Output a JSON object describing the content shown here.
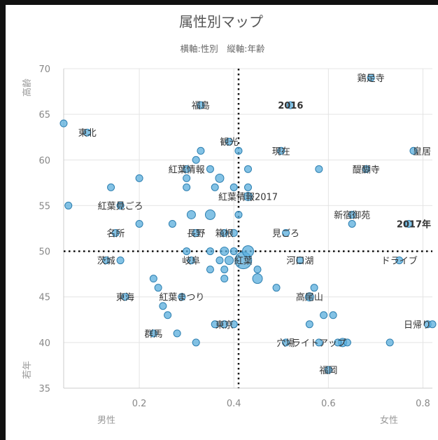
{
  "chart_data": {
    "type": "scatter",
    "title": "属性別マップ",
    "subtitle": "横軸:性別　縦軸:年齢",
    "xlim": [
      0.04,
      0.82
    ],
    "ylim": [
      35,
      70
    ],
    "x_ticks": [
      "0.2",
      "0.4",
      "0.6",
      "0.8"
    ],
    "y_ticks": [
      "35",
      "40",
      "45",
      "50",
      "55",
      "60",
      "65",
      "70"
    ],
    "x_left_label": "男性",
    "x_right_label": "女性",
    "y_top_label": "高齢",
    "y_bottom_label": "若年",
    "reference_lines": {
      "x": 0.41,
      "y": 50
    },
    "colors": {
      "point_fill": "#5aaedc",
      "point_stroke": "#2d7fb0",
      "frame": "#111111"
    },
    "points": [
      {
        "x": 0.69,
        "y": 69,
        "r": 5,
        "label": "鶏足寺"
      },
      {
        "x": 0.33,
        "y": 66,
        "r": 5,
        "label": "福島"
      },
      {
        "x": 0.52,
        "y": 66,
        "r": 5,
        "label": "2016",
        "bold": true
      },
      {
        "x": 0.04,
        "y": 64,
        "r": 5
      },
      {
        "x": 0.09,
        "y": 63,
        "r": 5,
        "label": "東北"
      },
      {
        "x": 0.39,
        "y": 62,
        "r": 5,
        "label": "観光"
      },
      {
        "x": 0.33,
        "y": 61,
        "r": 5
      },
      {
        "x": 0.41,
        "y": 61,
        "r": 5
      },
      {
        "x": 0.5,
        "y": 61,
        "r": 5,
        "label": "現在"
      },
      {
        "x": 0.78,
        "y": 61,
        "r": 5,
        "label": "皇居"
      },
      {
        "x": 0.32,
        "y": 60,
        "r": 5
      },
      {
        "x": 0.3,
        "y": 59,
        "r": 5,
        "label": "紅葉情報"
      },
      {
        "x": 0.35,
        "y": 59,
        "r": 5
      },
      {
        "x": 0.43,
        "y": 59,
        "r": 5
      },
      {
        "x": 0.58,
        "y": 59,
        "r": 5
      },
      {
        "x": 0.68,
        "y": 59,
        "r": 5,
        "label": "醍醐寺"
      },
      {
        "x": 0.2,
        "y": 58,
        "r": 5
      },
      {
        "x": 0.3,
        "y": 58,
        "r": 5
      },
      {
        "x": 0.37,
        "y": 58,
        "r": 6
      },
      {
        "x": 0.14,
        "y": 57,
        "r": 5
      },
      {
        "x": 0.3,
        "y": 57,
        "r": 5
      },
      {
        "x": 0.36,
        "y": 57,
        "r": 5
      },
      {
        "x": 0.4,
        "y": 57,
        "r": 5
      },
      {
        "x": 0.43,
        "y": 57,
        "r": 5
      },
      {
        "x": 0.43,
        "y": 56,
        "r": 6,
        "label": "紅葉情報2017"
      },
      {
        "x": 0.05,
        "y": 55,
        "r": 5
      },
      {
        "x": 0.16,
        "y": 55,
        "r": 5,
        "label": "紅葉見ごろ"
      },
      {
        "x": 0.31,
        "y": 54,
        "r": 6
      },
      {
        "x": 0.35,
        "y": 54,
        "r": 7
      },
      {
        "x": 0.41,
        "y": 54,
        "r": 5
      },
      {
        "x": 0.65,
        "y": 54,
        "r": 5,
        "label": "新宿御苑"
      },
      {
        "x": 0.2,
        "y": 53,
        "r": 5
      },
      {
        "x": 0.27,
        "y": 53,
        "r": 5
      },
      {
        "x": 0.65,
        "y": 53,
        "r": 5
      },
      {
        "x": 0.77,
        "y": 53,
        "r": 5,
        "label": "2017年",
        "bold": true
      },
      {
        "x": 0.15,
        "y": 52,
        "r": 5,
        "label": "名所"
      },
      {
        "x": 0.32,
        "y": 52,
        "r": 5,
        "label": "長野"
      },
      {
        "x": 0.38,
        "y": 52,
        "r": 5,
        "label": "箱根"
      },
      {
        "x": 0.4,
        "y": 52,
        "r": 5
      },
      {
        "x": 0.51,
        "y": 52,
        "r": 5,
        "label": "見ごろ"
      },
      {
        "x": 0.3,
        "y": 50,
        "r": 5
      },
      {
        "x": 0.35,
        "y": 50,
        "r": 5
      },
      {
        "x": 0.38,
        "y": 50,
        "r": 6
      },
      {
        "x": 0.4,
        "y": 50,
        "r": 5
      },
      {
        "x": 0.43,
        "y": 50,
        "r": 8
      },
      {
        "x": 0.13,
        "y": 49,
        "r": 5,
        "label": "茨城"
      },
      {
        "x": 0.16,
        "y": 49,
        "r": 5
      },
      {
        "x": 0.31,
        "y": 49,
        "r": 5,
        "label": "岐阜"
      },
      {
        "x": 0.37,
        "y": 49,
        "r": 5
      },
      {
        "x": 0.39,
        "y": 49,
        "r": 6
      },
      {
        "x": 0.42,
        "y": 49,
        "r": 12,
        "label": "紅葉"
      },
      {
        "x": 0.54,
        "y": 49,
        "r": 5,
        "label": "河口湖"
      },
      {
        "x": 0.75,
        "y": 49,
        "r": 5,
        "label": "ドライブ"
      },
      {
        "x": 0.35,
        "y": 48,
        "r": 5
      },
      {
        "x": 0.38,
        "y": 48,
        "r": 5
      },
      {
        "x": 0.45,
        "y": 48,
        "r": 5
      },
      {
        "x": 0.23,
        "y": 47,
        "r": 5
      },
      {
        "x": 0.38,
        "y": 47,
        "r": 5
      },
      {
        "x": 0.45,
        "y": 47,
        "r": 7
      },
      {
        "x": 0.24,
        "y": 46,
        "r": 5
      },
      {
        "x": 0.49,
        "y": 46,
        "r": 5
      },
      {
        "x": 0.57,
        "y": 46,
        "r": 5
      },
      {
        "x": 0.17,
        "y": 45,
        "r": 5,
        "label": "東海"
      },
      {
        "x": 0.29,
        "y": 45,
        "r": 5,
        "label": "紅葉まつり"
      },
      {
        "x": 0.56,
        "y": 45,
        "r": 6,
        "label": "高尾山"
      },
      {
        "x": 0.25,
        "y": 44,
        "r": 5
      },
      {
        "x": 0.26,
        "y": 43,
        "r": 5
      },
      {
        "x": 0.59,
        "y": 43,
        "r": 5
      },
      {
        "x": 0.61,
        "y": 43,
        "r": 5
      },
      {
        "x": 0.36,
        "y": 42,
        "r": 5
      },
      {
        "x": 0.38,
        "y": 42,
        "r": 5,
        "label": "東京"
      },
      {
        "x": 0.4,
        "y": 42,
        "r": 5
      },
      {
        "x": 0.56,
        "y": 42,
        "r": 5
      },
      {
        "x": 0.81,
        "y": 42,
        "r": 5,
        "label": "日帰り"
      },
      {
        "x": 0.82,
        "y": 42,
        "r": 5
      },
      {
        "x": 0.23,
        "y": 41,
        "r": 5,
        "label": "群馬"
      },
      {
        "x": 0.28,
        "y": 41,
        "r": 5
      },
      {
        "x": 0.32,
        "y": 40,
        "r": 5
      },
      {
        "x": 0.51,
        "y": 40,
        "r": 5,
        "label": "穴場"
      },
      {
        "x": 0.58,
        "y": 40,
        "r": 5,
        "label": "ライトアップ"
      },
      {
        "x": 0.62,
        "y": 40,
        "r": 5
      },
      {
        "x": 0.63,
        "y": 40,
        "r": 6
      },
      {
        "x": 0.64,
        "y": 40,
        "r": 5
      },
      {
        "x": 0.73,
        "y": 40,
        "r": 5
      },
      {
        "x": 0.6,
        "y": 37,
        "r": 5,
        "label": "福岡"
      }
    ]
  }
}
